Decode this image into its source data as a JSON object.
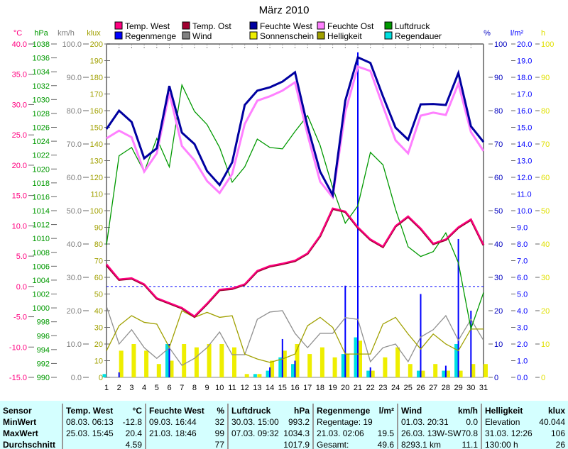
{
  "chart_data": {
    "type": "line",
    "title": "März 2010",
    "x": [
      1,
      2,
      3,
      4,
      5,
      6,
      7,
      8,
      9,
      10,
      11,
      12,
      13,
      14,
      15,
      16,
      17,
      18,
      19,
      20,
      21,
      22,
      23,
      24,
      25,
      26,
      27,
      28,
      29,
      30,
      31
    ],
    "axes": {
      "temp": {
        "label": "°C",
        "range": [
          -15,
          40
        ],
        "step": 5,
        "color": "#ff0080",
        "decimals": 1
      },
      "hpa": {
        "label": "hPa",
        "range": [
          990,
          1038
        ],
        "step": 2,
        "color": "#009900",
        "decimals": 0
      },
      "kmh": {
        "label": "km/h",
        "range": [
          0,
          100
        ],
        "step": 10,
        "color": "#808080",
        "decimals": 1
      },
      "klux": {
        "label": "klux",
        "range": [
          0,
          200
        ],
        "step": 10,
        "color": "#a0a000",
        "decimals": 0
      },
      "pct": {
        "label": "%",
        "range": [
          0,
          100
        ],
        "step": 10,
        "color": "#0000c0",
        "decimals": 0
      },
      "rain": {
        "label": "l/m²",
        "range": [
          0,
          20
        ],
        "step": 1,
        "color": "#0000ff",
        "decimals": 1
      },
      "hours": {
        "label": "h",
        "range": [
          0,
          100
        ],
        "step": 10,
        "color": "#e0e000",
        "decimals": 0
      }
    },
    "series": [
      {
        "name": "Sonnenschein",
        "kind": "bar",
        "axis": "hours",
        "color": "#eeee00",
        "values": [
          0,
          8,
          10,
          8,
          4,
          5,
          10,
          9,
          10,
          10,
          9,
          1,
          1,
          5,
          8,
          10,
          7,
          9,
          6,
          7,
          11,
          2,
          6,
          9,
          4,
          2,
          4,
          2,
          2,
          4,
          4
        ]
      },
      {
        "name": "Regendauer",
        "kind": "bar",
        "axis": "hours",
        "color": "#00e0e0",
        "values": [
          1,
          0,
          0,
          0,
          0,
          10,
          0,
          0,
          0,
          0,
          0,
          0,
          1,
          2,
          6,
          4,
          0,
          0,
          0,
          7,
          12,
          2,
          0,
          0,
          0,
          2,
          0,
          2,
          10,
          0,
          0
        ]
      },
      {
        "name": "Regenmenge",
        "kind": "bar",
        "axis": "rain",
        "color": "#0000ff",
        "values": [
          0,
          0.3,
          0,
          0,
          0,
          2.0,
          0,
          0,
          0,
          0,
          0,
          0,
          0,
          0.6,
          2.3,
          1.0,
          0,
          0,
          0,
          5.5,
          19.5,
          0.6,
          0,
          0,
          0,
          5.0,
          0,
          0.7,
          8.3,
          4.0,
          0
        ]
      },
      {
        "name": "Wind",
        "kind": "line",
        "axis": "kmh",
        "color": "#909090",
        "values": [
          21.3,
          10,
          14.3,
          8.9,
          5.7,
          8.9,
          3.6,
          5.7,
          8.9,
          13.6,
          6.8,
          6.8,
          17.4,
          19.6,
          20,
          13.2,
          8.9,
          13.2,
          13.2,
          17.9,
          17.4,
          4.7,
          8.9,
          10,
          4.7,
          12.1,
          14.3,
          18.5,
          11.1,
          17.4,
          11.1
        ]
      },
      {
        "name": "Helligkeit",
        "kind": "line",
        "axis": "klux",
        "color": "#a0a000",
        "values": [
          16,
          31,
          37,
          33,
          32,
          18,
          40,
          36,
          39,
          36,
          37,
          14,
          11,
          9,
          11,
          14,
          31,
          36,
          30,
          14,
          14,
          14,
          32,
          36,
          26,
          17,
          26,
          20,
          16,
          29,
          29
        ]
      },
      {
        "name": "Luftdruck",
        "kind": "line",
        "axis": "hpa",
        "color": "#009900",
        "values": [
          1009.1,
          1021.9,
          1023.1,
          1019.6,
          1024.4,
          1020.3,
          1032.1,
          1028.3,
          1026.4,
          1023.1,
          1018.1,
          1020.3,
          1024.3,
          1023.1,
          1022.9,
          1025.4,
          1027.7,
          1023.4,
          1017.3,
          1012.2,
          1014.7,
          1022.4,
          1020.6,
          1014.2,
          1008.8,
          1007.4,
          1008.1,
          1010.8,
          1006.5,
          997.0,
          1002.2
        ]
      },
      {
        "name": "Feuchte Ost",
        "kind": "line",
        "axis": "pct",
        "color": "#ff80ff",
        "width": 3,
        "values": [
          71.7,
          74,
          72,
          61.7,
          67.2,
          85.3,
          69.4,
          65.1,
          58.9,
          55.3,
          61,
          76,
          83,
          84.3,
          86,
          88.5,
          72.8,
          58.7,
          54,
          79.6,
          93.2,
          91.9,
          81.3,
          71.1,
          67.2,
          78.5,
          79.4,
          78.7,
          88.1,
          73.6,
          67.9
        ]
      },
      {
        "name": "Feuchte West",
        "kind": "line",
        "axis": "pct",
        "color": "#0000a0",
        "width": 3,
        "values": [
          74.5,
          80,
          76.6,
          65.7,
          68.7,
          87.4,
          73.4,
          70,
          61.9,
          57.7,
          64.5,
          81.7,
          86,
          87,
          88.7,
          91.5,
          75.3,
          61.7,
          54.7,
          83,
          96,
          94.3,
          84.3,
          74.9,
          71.3,
          81.9,
          82,
          81.7,
          91.3,
          75.3,
          70.6
        ]
      },
      {
        "name": "Temp. Ost",
        "kind": "line",
        "axis": "temp",
        "color": "#a00030",
        "width": 3,
        "values": [
          3.5,
          1.1,
          1.3,
          0.3,
          -2.0,
          -2.8,
          -3.6,
          -5.0,
          -2.9,
          -0.6,
          -0.4,
          0.3,
          2.5,
          3.3,
          3.7,
          4.2,
          5.4,
          8.3,
          12.8,
          12.3,
          9.7,
          7.7,
          6.5,
          9.9,
          11.5,
          9.5,
          7.0,
          7.7,
          9.7,
          11.0,
          6.8
        ]
      },
      {
        "name": "Temp. West",
        "kind": "line",
        "axis": "temp",
        "color": "#ff0080",
        "width": 2,
        "values": [
          3.7,
          1.2,
          1.4,
          0.4,
          -1.9,
          -2.7,
          -3.5,
          -4.9,
          -2.8,
          -0.5,
          -0.3,
          0.4,
          2.6,
          3.4,
          3.8,
          4.3,
          5.5,
          8.4,
          12.9,
          12.4,
          9.8,
          7.8,
          6.6,
          10.0,
          11.6,
          9.6,
          7.1,
          7.8,
          9.8,
          11.1,
          6.9
        ]
      }
    ],
    "legend": [
      {
        "name": "Temp. West",
        "color": "#ff0080"
      },
      {
        "name": "Temp. Ost",
        "color": "#a00030"
      },
      {
        "name": "Feuchte West",
        "color": "#0000a0"
      },
      {
        "name": "Feuchte Ost",
        "color": "#ff80ff"
      },
      {
        "name": "Luftdruck",
        "color": "#009900"
      },
      {
        "name": "Regenmenge",
        "color": "#0000ff"
      },
      {
        "name": "Wind",
        "color": "#808080"
      },
      {
        "name": "Sonnenschein",
        "color": "#eeee00"
      },
      {
        "name": "Helligkeit",
        "color": "#a0a000"
      },
      {
        "name": "Regendauer",
        "color": "#00e0e0"
      }
    ],
    "reference_line": {
      "axis": "temp",
      "value": 0,
      "color": "#0000ff"
    }
  },
  "table": {
    "columns": [
      {
        "header": "Sensor",
        "unit": "",
        "rows": [
          [
            "MinWert",
            ""
          ],
          [
            "MaxWert",
            ""
          ],
          [
            "Durchschnitt",
            ""
          ]
        ]
      },
      {
        "header": "Temp. West",
        "unit": "°C",
        "rows": [
          [
            "08.03.  06:13",
            "-12.8"
          ],
          [
            "25.03.  15:45",
            "20.4"
          ],
          [
            "",
            "4.59"
          ]
        ]
      },
      {
        "header": "Feuchte West",
        "unit": "%",
        "rows": [
          [
            "09.03.  16:44",
            "32"
          ],
          [
            "21.03.  18:46",
            "99"
          ],
          [
            "",
            "77"
          ]
        ]
      },
      {
        "header": "Luftdruck",
        "unit": "hPa",
        "rows": [
          [
            "30.03.  15:00",
            "993.2"
          ],
          [
            "07.03.  09:32",
            "1034.3"
          ],
          [
            "",
            "1017.9"
          ]
        ]
      },
      {
        "header": "Regenmenge",
        "unit": "l/m²",
        "rows": [
          [
            "Regentage: 19",
            ""
          ],
          [
            "21.03.  02:06",
            "19.5"
          ],
          [
            "Gesamt:",
            "49.6"
          ]
        ]
      },
      {
        "header": "Wind",
        "unit": "km/h",
        "rows": [
          [
            "01.03.  20:31",
            "0.0"
          ],
          [
            "26.03.  13W-SW",
            "70.8"
          ],
          [
            "8293.1 km",
            "11.1"
          ]
        ]
      },
      {
        "header": "Helligkeit",
        "unit": "klux",
        "rows": [
          [
            "Elevation",
            "40.044"
          ],
          [
            "31.03.  12:26",
            "106"
          ],
          [
            "130:00 h",
            "26"
          ]
        ]
      }
    ]
  }
}
